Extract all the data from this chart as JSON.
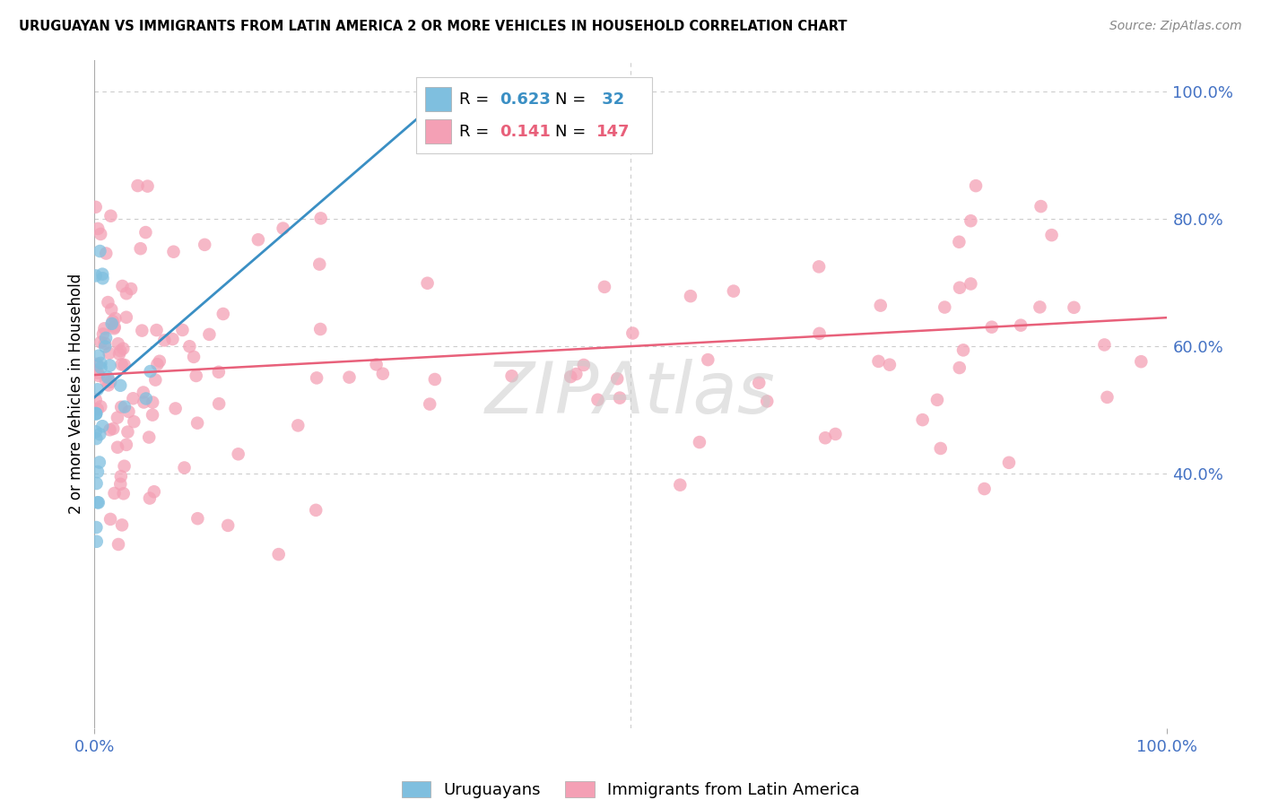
{
  "title": "URUGUAYAN VS IMMIGRANTS FROM LATIN AMERICA 2 OR MORE VEHICLES IN HOUSEHOLD CORRELATION CHART",
  "source": "Source: ZipAtlas.com",
  "ylabel": "2 or more Vehicles in Household",
  "legend_label_blue": "Uruguayans",
  "legend_label_pink": "Immigrants from Latin America",
  "R_blue": 0.623,
  "N_blue": 32,
  "R_pink": 0.141,
  "N_pink": 147,
  "blue_color": "#7fbfdf",
  "pink_color": "#f4a0b5",
  "trend_blue": "#3a8fc4",
  "trend_pink": "#e8607a",
  "axis_color": "#4472c4",
  "background_color": "#ffffff",
  "grid_color": "#cccccc",
  "yticks": [
    0.4,
    0.6,
    0.8,
    1.0
  ],
  "ytick_labels": [
    "40.0%",
    "60.0%",
    "80.0%",
    "100.0%"
  ],
  "xmin": 0.0,
  "xmax": 1.0,
  "ymin": 0.0,
  "ymax": 1.05,
  "blue_trend_x0": 0.0,
  "blue_trend_y0": 0.52,
  "blue_trend_x1": 0.33,
  "blue_trend_y1": 1.0,
  "pink_trend_x0": 0.0,
  "pink_trend_y0": 0.555,
  "pink_trend_x1": 1.0,
  "pink_trend_y1": 0.645
}
